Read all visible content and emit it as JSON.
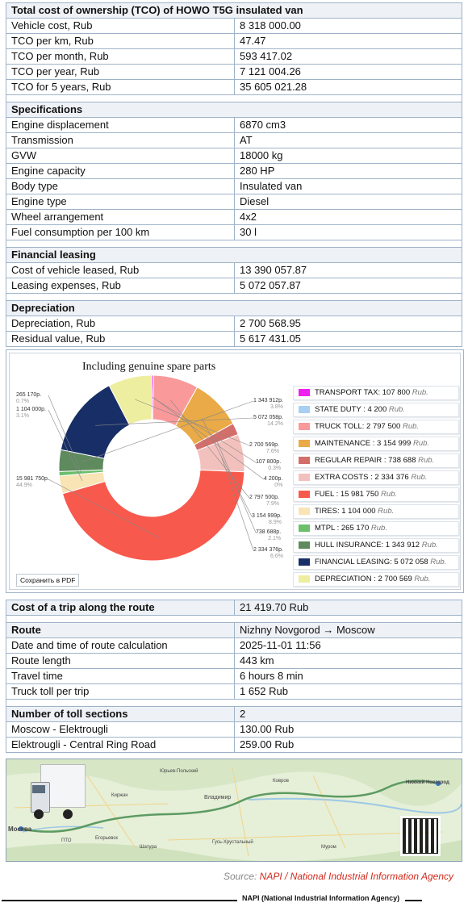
{
  "tco_table": {
    "title": "Total cost of ownership (TCO) of HOWO T5G insulated van",
    "rows": [
      {
        "label": "Vehicle cost, Rub",
        "value": "8 318 000.00"
      },
      {
        "label": "TCO per km, Rub",
        "value": "47.47"
      },
      {
        "label": "TCO per month, Rub",
        "value": "593 417.02"
      },
      {
        "label": "TCO per year, Rub",
        "value": "7 121 004.26"
      },
      {
        "label": "TCO for 5 years, Rub",
        "value": "35 605 021.28"
      }
    ],
    "spec_title": "Specifications",
    "specs": [
      {
        "label": "Engine displacement",
        "value": "6870 cm3"
      },
      {
        "label": "Transmission",
        "value": "AT"
      },
      {
        "label": "GVW",
        "value": "18000 kg"
      },
      {
        "label": "Engine capacity",
        "value": "280 HP"
      },
      {
        "label": "Body type",
        "value": "Insulated van"
      },
      {
        "label": "Engine type",
        "value": "Diesel"
      },
      {
        "label": "Wheel arrangement",
        "value": "4x2"
      },
      {
        "label": "Fuel consumption per 100 km",
        "value": "30 l"
      }
    ],
    "leasing_title": "Financial leasing",
    "leasing": [
      {
        "label": "Cost of vehicle leased, Rub",
        "value": "13 390 057.87"
      },
      {
        "label": "Leasing expenses, Rub",
        "value": "5 072 057.87"
      }
    ],
    "depr_title": "Depreciation",
    "depr": [
      {
        "label": "Depreciation, Rub",
        "value": "2 700 568.95"
      },
      {
        "label": "Residual value, Rub",
        "value": "5 617 431.05"
      }
    ]
  },
  "chart_data": {
    "type": "pie",
    "title": "Including genuine spare parts",
    "save_label": "Сохранить в PDF",
    "slices": [
      {
        "name": "TRANSPORT TAX",
        "value": 107800,
        "legend": "TRANSPORT TAX: 107 800",
        "color": "#ee22ee",
        "label": "107 800р.",
        "pct": "0.3%"
      },
      {
        "name": "STATE DUTY",
        "value": 4200,
        "legend": "STATE DUTY : 4 200",
        "color": "#a9cff2",
        "label": "4 200р.",
        "pct": "0%"
      },
      {
        "name": "TRUCK TOLL",
        "value": 2797500,
        "legend": "TRUCK TOLL: 2 797 500",
        "color": "#f9999a",
        "label": "2 797 500р.",
        "pct": "7.9%"
      },
      {
        "name": "MAINTENANCE",
        "value": 3154999,
        "legend": "MAINTENANCE : 3 154 999",
        "color": "#e9aa47",
        "label": "3 154 999р.",
        "pct": "8.9%"
      },
      {
        "name": "REGULAR REPAIR",
        "value": 738688,
        "legend": "REGULAR REPAIR : 738 688",
        "color": "#d46e6b",
        "label": "738 688р.",
        "pct": "2.1%"
      },
      {
        "name": "EXTRA COSTS",
        "value": 2334376,
        "legend": "EXTRA COSTS : 2 334 376",
        "color": "#f3c1bd",
        "label": "2 334 376р.",
        "pct": "6.6%"
      },
      {
        "name": "FUEL",
        "value": 15981750,
        "legend": "FUEL : 15 981 750",
        "color": "#f8594d",
        "label": "15 981 750р.",
        "pct": "44.9%"
      },
      {
        "name": "TIRES",
        "value": 1104000,
        "legend": "TIRES: 1 104 000",
        "color": "#f9e4b5",
        "label": "1 104 000р.",
        "pct": "3.1%"
      },
      {
        "name": "MTPL",
        "value": 265170,
        "legend": "MTPL : 265 170",
        "color": "#6bbf6b",
        "label": "265 170р.",
        "pct": "0.7%"
      },
      {
        "name": "HULL INSURANCE",
        "value": 1343912,
        "legend": "HULL INSURANCE: 1 343 912",
        "color": "#5e8a5e",
        "label": "1 343 912р.",
        "pct": "3.8%"
      },
      {
        "name": "FINANCIAL LEASING",
        "value": 5072058,
        "legend": "FINANCIAL LEASING: 5 072 058",
        "color": "#172f66",
        "label": "5 072 058р.",
        "pct": "14.2%"
      },
      {
        "name": "DEPRECIATION",
        "value": 2700569,
        "legend": "DEPRECIATION : 2 700 569",
        "color": "#eeeea0",
        "label": "2 700 569р.",
        "pct": "7.6%"
      }
    ],
    "unit": "Rub."
  },
  "trip": {
    "cost_label": "Cost of a trip along the route",
    "cost_value": "21 419.70 Rub",
    "route_label": "Route",
    "route_value": "Nizhny Novgorod → Moscow",
    "rows": [
      {
        "label": "Date and time of route calculation",
        "value": "2025-11-01 11:56"
      },
      {
        "label": "Route length",
        "value": "443 km"
      },
      {
        "label": "Travel time",
        "value": "6 hours 8 min"
      },
      {
        "label": "Truck toll per trip",
        "value": "1 652 Rub"
      }
    ],
    "toll_label": "Number of toll sections",
    "toll_value": "2",
    "tolls": [
      {
        "label": "Moscow - Elektrougli",
        "value": "130.00 Rub"
      },
      {
        "label": "Elektrougli  - Central Ring Road",
        "value": "259.00 Rub"
      }
    ]
  },
  "map": {
    "towns": [
      "Москва",
      "Владимир",
      "Ковров",
      "Нижний Новгород",
      "Муром",
      "Юрьев-Польский",
      "Киржач",
      "Гусь-Хрустальный",
      "Шатура",
      "Егорьевск",
      "ПТО"
    ]
  },
  "source": {
    "prefix": "Source: ",
    "agency": "NAPI / National Industrial Information Agency"
  },
  "footer": "NAPI (National Industrial Information Agency)"
}
